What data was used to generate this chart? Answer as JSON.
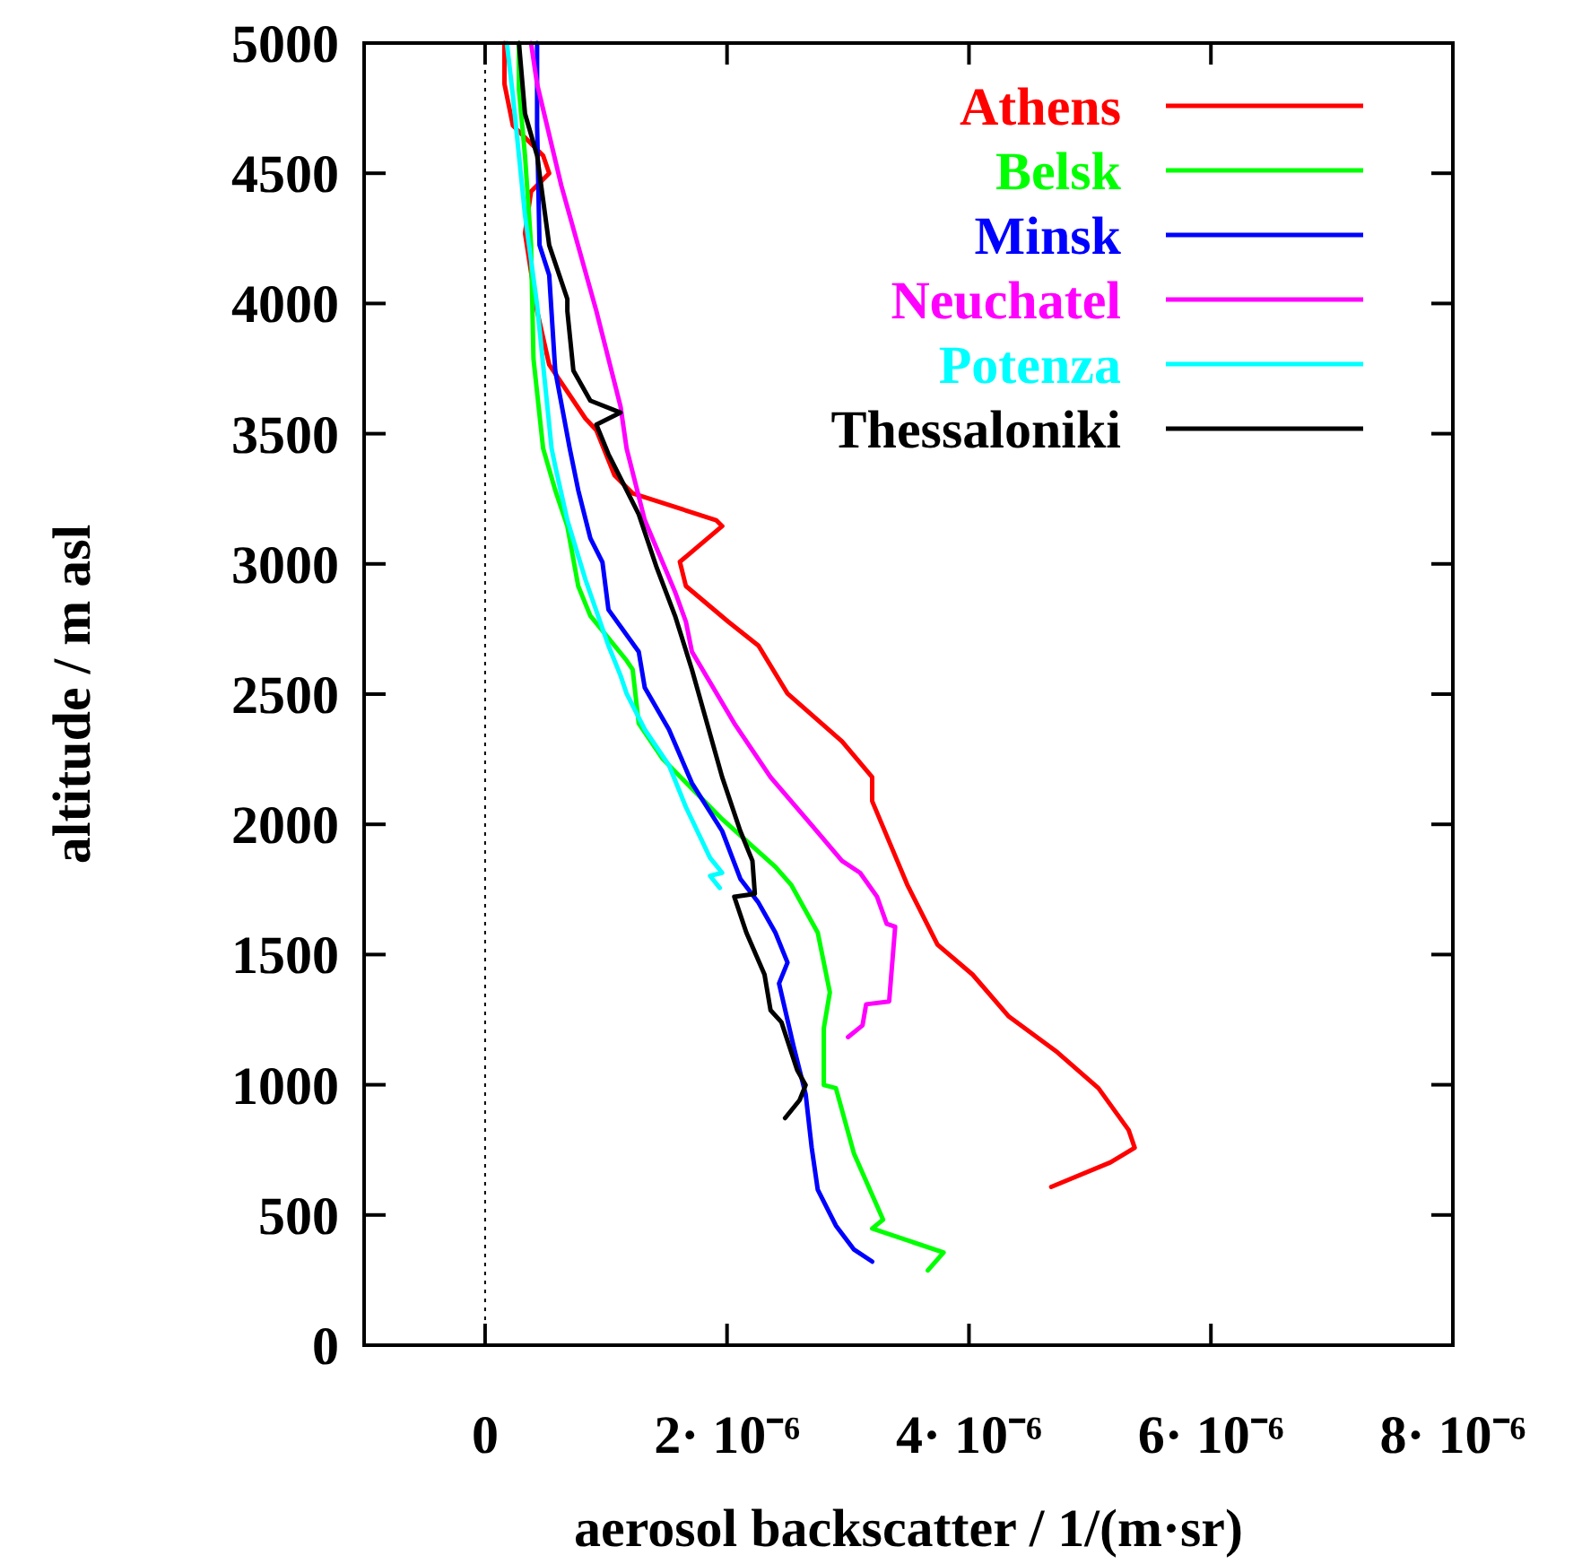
{
  "chart_data": {
    "type": "line",
    "xlabel": "aerosol backscatter / 1/(m·sr)",
    "ylabel": "altitude / m asl",
    "xlim": [
      -1e-06,
      8e-06
    ],
    "xticks": [
      0,
      {
        "value": 2e-06,
        "label": "2· 10⁻⁶"
      },
      {
        "value": 4e-06,
        "label": "4· 10⁻⁶"
      },
      {
        "value": 6e-06,
        "label": "6· 10⁻⁶"
      },
      {
        "value": 8e-06,
        "label": "8· 10⁻⁶"
      }
    ],
    "ylim": [
      0,
      5000
    ],
    "yticks": [
      0,
      500,
      1000,
      1500,
      2000,
      2500,
      3000,
      3500,
      4000,
      4500,
      5000
    ],
    "grid": false,
    "legend": "top right",
    "marker": "none",
    "line_style": "solid",
    "ref_lines": [
      {
        "axis": "x",
        "value": 0,
        "line_style": "dotted",
        "color": "#000000"
      }
    ],
    "series": [
      {
        "name": "Athens",
        "color": "#ff0000",
        "x": [
          4.68e-06,
          5.17e-06,
          5.37e-06,
          5.32e-06,
          5.07e-06,
          4.73e-06,
          4.33e-06,
          4.03e-06,
          3.74e-06,
          3.49e-06,
          3.2e-06,
          3.2e-06,
          2.95e-06,
          2.5e-06,
          2.26e-06,
          2.01e-06,
          1.66e-06,
          1.61e-06,
          1.96e-06,
          1.91e-06,
          1.22e-06,
          1.07e-06,
          9.2e-07,
          8.3e-07,
          5.3e-07,
          4.3e-07,
          3.3e-07,
          3.8e-07,
          5.3e-07,
          4.8e-07,
          2.3e-07,
          1.6e-07,
          1.6e-07
        ],
        "values": [
          608,
          702,
          758,
          826,
          987,
          1125,
          1262,
          1423,
          1538,
          1768,
          2089,
          2181,
          2319,
          2502,
          2686,
          2778,
          2915,
          3008,
          3145,
          3168,
          3271,
          3340,
          3513,
          3558,
          3765,
          3971,
          4270,
          4430,
          4500,
          4568,
          4683,
          4843,
          5000
        ]
      },
      {
        "name": "Belsk",
        "color": "#00ff00",
        "x": [
          3.66e-06,
          3.79e-06,
          3.2e-06,
          3.29e-06,
          3.05e-06,
          2.9e-06,
          2.8e-06,
          2.8e-06,
          2.85e-06,
          2.75e-06,
          2.53e-06,
          2.4e-06,
          1.96e-06,
          1.47e-06,
          1.27e-06,
          1.22e-06,
          1.17e-06,
          8.7e-07,
          7.7e-07,
          6.8e-07,
          5.8e-07,
          4.8e-07,
          4e-07,
          3.8e-07,
          3.3e-07,
          2.8e-07,
          2.8e-07
        ],
        "values": [
          287,
          356,
          448,
          482,
          735,
          987,
          999,
          1217,
          1355,
          1584,
          1768,
          1837,
          2020,
          2250,
          2388,
          2594,
          2629,
          2801,
          2915,
          3145,
          3283,
          3443,
          3788,
          4224,
          4568,
          4821,
          5000
        ]
      },
      {
        "name": "Minsk",
        "color": "#0000ff",
        "x": [
          3.2e-06,
          3.05e-06,
          2.9e-06,
          2.75e-06,
          2.7e-06,
          2.65e-06,
          2.55e-06,
          2.43e-06,
          2.5e-06,
          2.4e-06,
          2.26e-06,
          2.11e-06,
          1.96e-06,
          1.71e-06,
          1.52e-06,
          1.32e-06,
          1.27e-06,
          1.02e-06,
          9.7e-07,
          8.7e-07,
          7.7e-07,
          7e-07,
          5.8e-07,
          5.3e-07,
          4.5e-07,
          4.3e-07,
          4.3e-07
        ],
        "values": [
          321,
          367,
          459,
          597,
          758,
          964,
          1148,
          1389,
          1469,
          1584,
          1699,
          1791,
          1974,
          2158,
          2364,
          2525,
          2663,
          2824,
          3007,
          3099,
          3283,
          3443,
          3742,
          4109,
          4224,
          4683,
          5000
        ]
      },
      {
        "name": "Neuchatel",
        "color": "#ff00ff",
        "x": [
          3e-06,
          3.12e-06,
          3.15e-06,
          3.34e-06,
          3.37e-06,
          3.39e-06,
          3.32e-06,
          3.24e-06,
          3.1e-06,
          2.95e-06,
          2.7e-06,
          2.36e-06,
          2.06e-06,
          1.71e-06,
          1.66e-06,
          1.57e-06,
          1.32e-06,
          1.17e-06,
          1.12e-06,
          9.2e-07,
          6.3e-07,
          4.3e-07,
          3.8e-07
        ],
        "values": [
          1183,
          1228,
          1309,
          1320,
          1492,
          1607,
          1618,
          1722,
          1814,
          1860,
          1997,
          2181,
          2388,
          2663,
          2778,
          2893,
          3168,
          3443,
          3604,
          3971,
          4453,
          4843,
          5000
        ]
      },
      {
        "name": "Potenza",
        "color": "#00ffff",
        "x": [
          1.94e-06,
          1.86e-06,
          1.96e-06,
          1.86e-06,
          1.66e-06,
          1.52e-06,
          1.32e-06,
          1.17e-06,
          1.12e-06,
          1.02e-06,
          8.3e-07,
          6.8e-07,
          5.8e-07,
          5.5e-07,
          4.3e-07,
          3.3e-07,
          2.3e-07,
          1.8e-07
        ],
        "values": [
          1756,
          1802,
          1814,
          1871,
          2066,
          2227,
          2364,
          2502,
          2571,
          2686,
          2939,
          3168,
          3375,
          3443,
          3994,
          4339,
          4798,
          5000
        ]
      },
      {
        "name": "Thessaloniki",
        "color": "#000000",
        "x": [
          2.48e-06,
          2.6e-06,
          2.65e-06,
          2.58e-06,
          2.45e-06,
          2.36e-06,
          2.31e-06,
          2.16e-06,
          2.06e-06,
          2.23e-06,
          2.21e-06,
          2.11e-06,
          1.96e-06,
          1.71e-06,
          1.57e-06,
          1.42e-06,
          1.27e-06,
          1.02e-06,
          9.2e-07,
          1.12e-06,
          8.7e-07,
          7.3e-07,
          6.8e-07,
          6.8e-07,
          5.3e-07,
          4.3e-07,
          3.3e-07,
          2.8e-07
        ],
        "values": [
          872,
          941,
          999,
          1056,
          1240,
          1286,
          1423,
          1584,
          1722,
          1733,
          1860,
          1974,
          2181,
          2594,
          2801,
          2984,
          3191,
          3421,
          3535,
          3581,
          3627,
          3742,
          3971,
          4017,
          4224,
          4568,
          4729,
          5000
        ]
      }
    ]
  }
}
